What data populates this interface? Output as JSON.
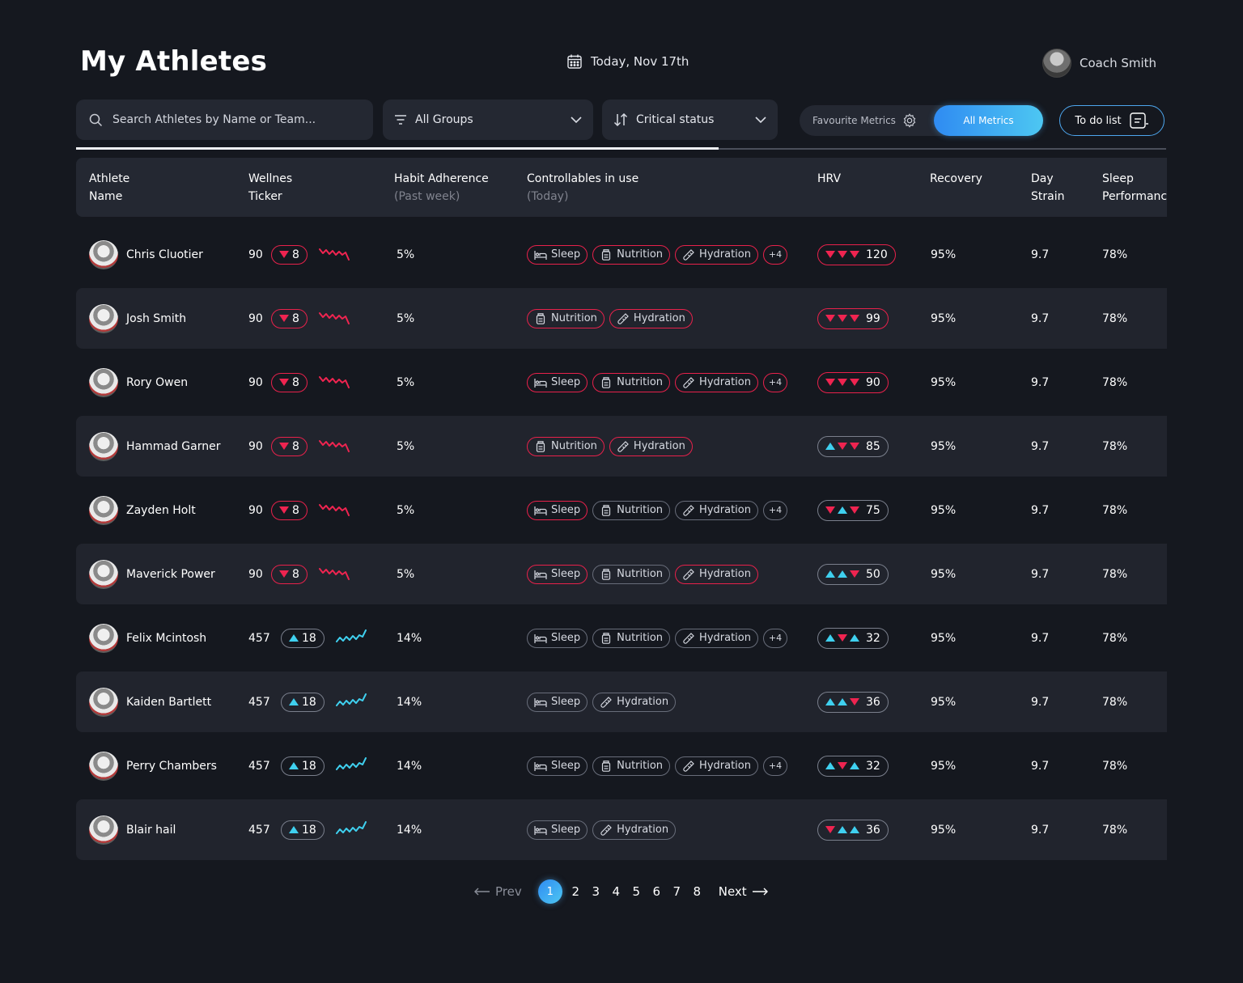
{
  "header": {
    "title": "My Athletes",
    "date": "Today, Nov 17th",
    "coach_name": "Coach Smith"
  },
  "toolbar": {
    "search_placeholder": "Search Athletes by Name or Team...",
    "groups_label": "All Groups",
    "sort_label": "Critical status",
    "favourite_label": "Favourite Metrics",
    "all_metrics_label": "All Metrics",
    "todo_label": "To do list"
  },
  "columns": {
    "name": [
      "Athlete",
      "Name"
    ],
    "ticker": [
      "Wellnes",
      "Ticker"
    ],
    "habit": [
      "Habit Adherence",
      "(Past week)"
    ],
    "controllables": [
      "Controllables in use",
      "(Today)"
    ],
    "hrv": "HRV",
    "recovery": "Recovery",
    "strain": [
      "Day",
      "Strain"
    ],
    "sleep": [
      "Sleep",
      "Performance"
    ]
  },
  "colors": {
    "accent_red": "#e8214b",
    "accent_cyan": "#3fd0ef",
    "accent_blue": "#2f8bf2"
  },
  "athletes": [
    {
      "name": "Chris Cluotier",
      "score": "90",
      "trend": "down",
      "change": "8",
      "habit": "5%",
      "tags": [
        {
          "label": "Sleep",
          "icon": "bed-icon",
          "red": true
        },
        {
          "label": "Nutrition",
          "icon": "jar-icon",
          "red": true
        },
        {
          "label": "Hydration",
          "icon": "bottle-icon",
          "red": true
        }
      ],
      "more": "+4",
      "more_red": true,
      "hrv_arrows": [
        "down",
        "down",
        "down"
      ],
      "hrv": "120",
      "hrv_red": true,
      "recovery": "95%",
      "strain": "9.7",
      "sleep": "78%"
    },
    {
      "name": "Josh Smith",
      "score": "90",
      "trend": "down",
      "change": "8",
      "habit": "5%",
      "tags": [
        {
          "label": "Nutrition",
          "icon": "jar-icon",
          "red": true
        },
        {
          "label": "Hydration",
          "icon": "bottle-icon",
          "red": true
        }
      ],
      "more": "",
      "more_red": false,
      "hrv_arrows": [
        "down",
        "down",
        "down"
      ],
      "hrv": "99",
      "hrv_red": true,
      "recovery": "95%",
      "strain": "9.7",
      "sleep": "78%"
    },
    {
      "name": "Rory Owen",
      "score": "90",
      "trend": "down",
      "change": "8",
      "habit": "5%",
      "tags": [
        {
          "label": "Sleep",
          "icon": "bed-icon",
          "red": true
        },
        {
          "label": "Nutrition",
          "icon": "jar-icon",
          "red": true
        },
        {
          "label": "Hydration",
          "icon": "bottle-icon",
          "red": true
        }
      ],
      "more": "+4",
      "more_red": true,
      "hrv_arrows": [
        "down",
        "down",
        "down"
      ],
      "hrv": "90",
      "hrv_red": true,
      "recovery": "95%",
      "strain": "9.7",
      "sleep": "78%"
    },
    {
      "name": "Hammad Garner",
      "score": "90",
      "trend": "down",
      "change": "8",
      "habit": "5%",
      "tags": [
        {
          "label": "Nutrition",
          "icon": "jar-icon",
          "red": true
        },
        {
          "label": "Hydration",
          "icon": "bottle-icon",
          "red": true
        }
      ],
      "more": "",
      "more_red": false,
      "hrv_arrows": [
        "up",
        "down",
        "down"
      ],
      "hrv": "85",
      "hrv_red": false,
      "recovery": "95%",
      "strain": "9.7",
      "sleep": "78%"
    },
    {
      "name": "Zayden Holt",
      "score": "90",
      "trend": "down",
      "change": "8",
      "habit": "5%",
      "tags": [
        {
          "label": "Sleep",
          "icon": "bed-icon",
          "red": true
        },
        {
          "label": "Nutrition",
          "icon": "jar-icon",
          "red": false
        },
        {
          "label": "Hydration",
          "icon": "bottle-icon",
          "red": false
        }
      ],
      "more": "+4",
      "more_red": false,
      "hrv_arrows": [
        "down",
        "up",
        "down"
      ],
      "hrv": "75",
      "hrv_red": false,
      "recovery": "95%",
      "strain": "9.7",
      "sleep": "78%"
    },
    {
      "name": "Maverick Power",
      "score": "90",
      "trend": "down",
      "change": "8",
      "habit": "5%",
      "tags": [
        {
          "label": "Sleep",
          "icon": "bed-icon",
          "red": true
        },
        {
          "label": "Nutrition",
          "icon": "jar-icon",
          "red": false
        },
        {
          "label": "Hydration",
          "icon": "bottle-icon",
          "red": true
        }
      ],
      "more": "",
      "more_red": false,
      "hrv_arrows": [
        "up",
        "up",
        "down"
      ],
      "hrv": "50",
      "hrv_red": false,
      "recovery": "95%",
      "strain": "9.7",
      "sleep": "78%"
    },
    {
      "name": "Felix Mcintosh",
      "score": "457",
      "trend": "up",
      "change": "18",
      "habit": "14%",
      "tags": [
        {
          "label": "Sleep",
          "icon": "bed-icon",
          "red": false
        },
        {
          "label": "Nutrition",
          "icon": "jar-icon",
          "red": false
        },
        {
          "label": "Hydration",
          "icon": "bottle-icon",
          "red": false
        }
      ],
      "more": "+4",
      "more_red": false,
      "hrv_arrows": [
        "up",
        "down",
        "up"
      ],
      "hrv": "32",
      "hrv_red": false,
      "recovery": "95%",
      "strain": "9.7",
      "sleep": "78%"
    },
    {
      "name": "Kaiden Bartlett",
      "score": "457",
      "trend": "up",
      "change": "18",
      "habit": "14%",
      "tags": [
        {
          "label": "Sleep",
          "icon": "bed-icon",
          "red": false
        },
        {
          "label": "Hydration",
          "icon": "bottle-icon",
          "red": false
        }
      ],
      "more": "",
      "more_red": false,
      "hrv_arrows": [
        "up",
        "up",
        "down"
      ],
      "hrv": "36",
      "hrv_red": false,
      "recovery": "95%",
      "strain": "9.7",
      "sleep": "78%"
    },
    {
      "name": "Perry Chambers",
      "score": "457",
      "trend": "up",
      "change": "18",
      "habit": "14%",
      "tags": [
        {
          "label": "Sleep",
          "icon": "bed-icon",
          "red": false
        },
        {
          "label": "Nutrition",
          "icon": "jar-icon",
          "red": false
        },
        {
          "label": "Hydration",
          "icon": "bottle-icon",
          "red": false
        }
      ],
      "more": "+4",
      "more_red": false,
      "hrv_arrows": [
        "up",
        "down",
        "up"
      ],
      "hrv": "32",
      "hrv_red": false,
      "recovery": "95%",
      "strain": "9.7",
      "sleep": "78%"
    },
    {
      "name": "Blair hail",
      "score": "457",
      "trend": "up",
      "change": "18",
      "habit": "14%",
      "tags": [
        {
          "label": "Sleep",
          "icon": "bed-icon",
          "red": false
        },
        {
          "label": "Hydration",
          "icon": "bottle-icon",
          "red": false
        }
      ],
      "more": "",
      "more_red": false,
      "hrv_arrows": [
        "down",
        "up",
        "up"
      ],
      "hrv": "36",
      "hrv_red": false,
      "recovery": "95%",
      "strain": "9.7",
      "sleep": "78%"
    }
  ],
  "pagination": {
    "prev_label": "Prev",
    "next_label": "Next",
    "pages": [
      "1",
      "2",
      "3",
      "4",
      "5",
      "6",
      "7",
      "8"
    ],
    "current": "1"
  }
}
